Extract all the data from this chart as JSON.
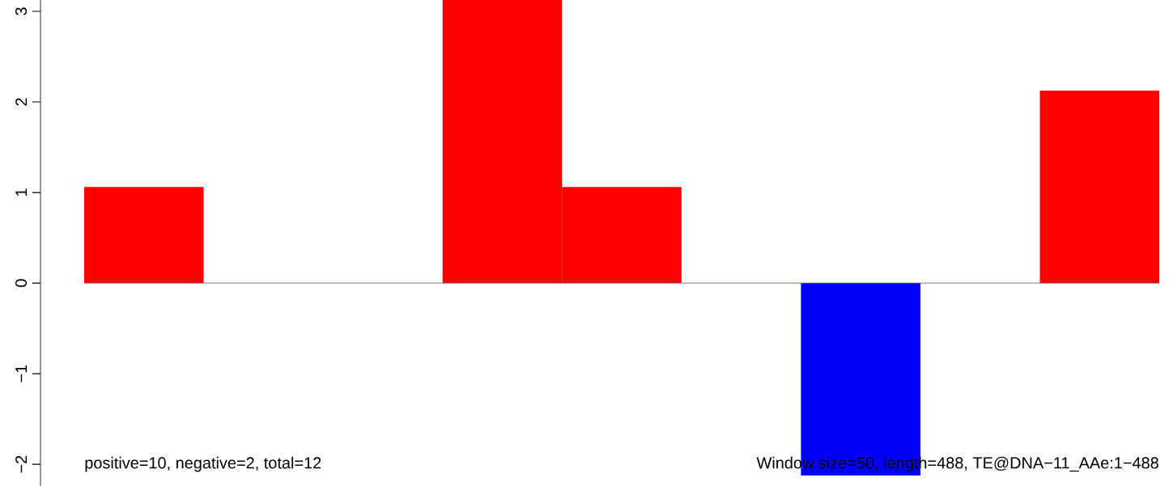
{
  "chart_data": {
    "type": "bar",
    "categories": [
      null,
      null,
      null,
      null,
      null,
      null,
      null,
      null,
      null
    ],
    "values": [
      1.06,
      0,
      0,
      3.125,
      1.06,
      0,
      -2.125,
      0,
      2.125
    ],
    "colors": [
      "#ff0000",
      "#ff0000",
      "#ff0000",
      "#ff0000",
      "#ff0000",
      "#ff0000",
      "#0000ff",
      "#ff0000",
      "#ff0000"
    ],
    "ylim": [
      -2.24,
      3.125
    ],
    "yticks": [
      {
        "value": -2,
        "label": "−2"
      },
      {
        "value": -1,
        "label": "−1"
      },
      0,
      1,
      2,
      3
    ],
    "tick_labels": "y",
    "annotations": [
      "positive=10, negative=2, total=12",
      "Window size=50, length=488, TE@DNA−11_AAe:1−488"
    ]
  }
}
